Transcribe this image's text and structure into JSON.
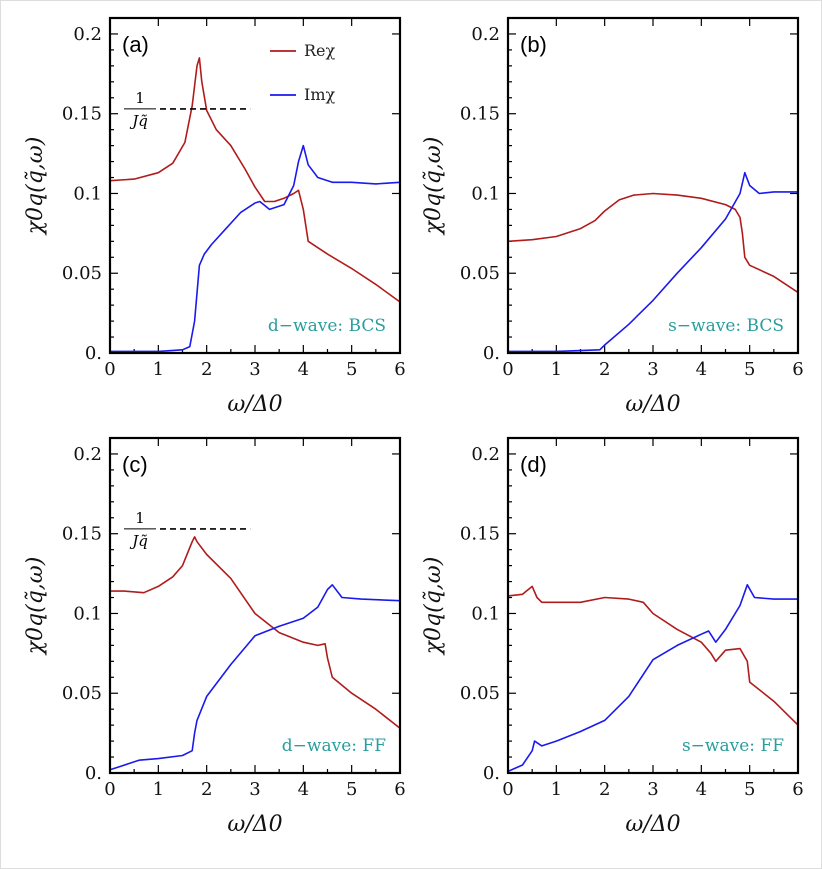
{
  "colors": {
    "re": "#b01c1c",
    "im": "#1a1aee",
    "annotation": "#2a9d9d"
  },
  "chart_data": [
    {
      "type": "line",
      "panel_label": "(a)",
      "ylabel": "χ0q(q̃,ω)",
      "xlabel": "ω/Δ0",
      "xlim": [
        0,
        6
      ],
      "ylim": [
        0,
        0.21
      ],
      "xticks": [
        "0",
        "1",
        "2",
        "3",
        "4",
        "5",
        "6"
      ],
      "yticks": [
        "0.",
        "0.05",
        "0.1",
        "0.15",
        "0.2"
      ],
      "legend": [
        "Reχ",
        "Imχ"
      ],
      "annotation": "d−wave: BCS",
      "threshold": {
        "label_num": "1",
        "label_den": "Jq̃",
        "value": 0.153,
        "x_range": [
          0,
          2.9
        ]
      },
      "series": [
        {
          "name": "Reχ",
          "x": [
            0,
            0.5,
            1,
            1.3,
            1.55,
            1.7,
            1.8,
            1.85,
            1.9,
            2,
            2.2,
            2.5,
            2.8,
            3,
            3.2,
            3.4,
            3.6,
            3.8,
            3.9,
            4,
            4.1,
            4.5,
            5,
            5.5,
            6
          ],
          "y": [
            0.108,
            0.109,
            0.113,
            0.119,
            0.132,
            0.155,
            0.18,
            0.185,
            0.17,
            0.152,
            0.14,
            0.13,
            0.115,
            0.104,
            0.095,
            0.095,
            0.097,
            0.1,
            0.102,
            0.09,
            0.07,
            0.062,
            0.053,
            0.043,
            0.032
          ]
        },
        {
          "name": "Imχ",
          "x": [
            0,
            1,
            1.5,
            1.65,
            1.75,
            1.85,
            1.95,
            2.1,
            2.4,
            2.7,
            3,
            3.1,
            3.3,
            3.6,
            3.8,
            3.9,
            4,
            4.1,
            4.3,
            4.6,
            5,
            5.5,
            6
          ],
          "y": [
            0.001,
            0.001,
            0.002,
            0.004,
            0.02,
            0.055,
            0.062,
            0.068,
            0.078,
            0.088,
            0.094,
            0.095,
            0.09,
            0.093,
            0.105,
            0.12,
            0.13,
            0.118,
            0.11,
            0.107,
            0.107,
            0.106,
            0.107
          ]
        }
      ]
    },
    {
      "type": "line",
      "panel_label": "(b)",
      "ylabel": "χ0q(q̃,ω)",
      "xlabel": "ω/Δ0",
      "xlim": [
        0,
        6
      ],
      "ylim": [
        0,
        0.21
      ],
      "xticks": [
        "0",
        "1",
        "2",
        "3",
        "4",
        "5",
        "6"
      ],
      "yticks": [
        "0.",
        "0.05",
        "0.1",
        "0.15",
        "0.2"
      ],
      "annotation": "s−wave: BCS",
      "series": [
        {
          "name": "Reχ",
          "x": [
            0,
            0.5,
            1,
            1.5,
            1.8,
            2,
            2.3,
            2.6,
            3,
            3.5,
            4,
            4.5,
            4.7,
            4.8,
            4.85,
            4.9,
            5,
            5.5,
            6
          ],
          "y": [
            0.07,
            0.071,
            0.073,
            0.078,
            0.083,
            0.089,
            0.096,
            0.099,
            0.1,
            0.099,
            0.097,
            0.093,
            0.09,
            0.085,
            0.075,
            0.06,
            0.055,
            0.048,
            0.038
          ]
        },
        {
          "name": "Imχ",
          "x": [
            0,
            1,
            1.9,
            2,
            2.5,
            3,
            3.5,
            4,
            4.5,
            4.8,
            4.9,
            5,
            5.2,
            5.5,
            6
          ],
          "y": [
            0.001,
            0.001,
            0.002,
            0.005,
            0.018,
            0.033,
            0.05,
            0.066,
            0.084,
            0.1,
            0.113,
            0.105,
            0.1,
            0.101,
            0.101
          ]
        }
      ]
    },
    {
      "type": "line",
      "panel_label": "(c)",
      "ylabel": "χ0q(q̃,ω)",
      "xlabel": "ω/Δ0",
      "xlim": [
        0,
        6
      ],
      "ylim": [
        0,
        0.21
      ],
      "xticks": [
        "0",
        "1",
        "2",
        "3",
        "4",
        "5",
        "6"
      ],
      "yticks": [
        "0.",
        "0.05",
        "0.1",
        "0.15",
        "0.2"
      ],
      "annotation": "d−wave: FF",
      "threshold": {
        "label_num": "1",
        "label_den": "Jq̃",
        "value": 0.153,
        "x_range": [
          0,
          2.9
        ]
      },
      "series": [
        {
          "name": "Reχ",
          "x": [
            0,
            0.3,
            0.7,
            1,
            1.3,
            1.5,
            1.7,
            1.75,
            1.8,
            2,
            2.5,
            3,
            3.5,
            4,
            4.3,
            4.45,
            4.5,
            4.6,
            5,
            5.5,
            6
          ],
          "y": [
            0.114,
            0.114,
            0.113,
            0.117,
            0.123,
            0.13,
            0.145,
            0.148,
            0.145,
            0.137,
            0.122,
            0.1,
            0.088,
            0.082,
            0.08,
            0.081,
            0.072,
            0.06,
            0.05,
            0.04,
            0.028
          ]
        },
        {
          "name": "Imχ",
          "x": [
            0,
            0.2,
            0.6,
            1,
            1.5,
            1.7,
            1.75,
            1.8,
            2,
            2.5,
            3,
            3.5,
            4,
            4.3,
            4.5,
            4.6,
            4.8,
            5.2,
            6
          ],
          "y": [
            0.002,
            0.004,
            0.008,
            0.009,
            0.011,
            0.014,
            0.025,
            0.033,
            0.048,
            0.068,
            0.086,
            0.092,
            0.097,
            0.104,
            0.115,
            0.118,
            0.11,
            0.109,
            0.108
          ]
        }
      ]
    },
    {
      "type": "line",
      "panel_label": "(d)",
      "ylabel": "χ0q(q̃,ω)",
      "xlabel": "ω/Δ0",
      "xlim": [
        0,
        6
      ],
      "ylim": [
        0,
        0.21
      ],
      "xticks": [
        "0",
        "1",
        "2",
        "3",
        "4",
        "5",
        "6"
      ],
      "yticks": [
        "0.",
        "0.05",
        "0.1",
        "0.15",
        "0.2"
      ],
      "annotation": "s−wave: FF",
      "series": [
        {
          "name": "Reχ",
          "x": [
            0,
            0.3,
            0.5,
            0.6,
            0.7,
            1,
            1.5,
            2,
            2.5,
            2.8,
            3,
            3.5,
            4,
            4.2,
            4.3,
            4.5,
            4.8,
            4.95,
            5,
            5.5,
            6
          ],
          "y": [
            0.111,
            0.112,
            0.117,
            0.11,
            0.107,
            0.107,
            0.107,
            0.11,
            0.109,
            0.107,
            0.1,
            0.09,
            0.082,
            0.075,
            0.07,
            0.077,
            0.078,
            0.07,
            0.057,
            0.045,
            0.03
          ]
        },
        {
          "name": "Imχ",
          "x": [
            0,
            0.3,
            0.5,
            0.55,
            0.7,
            1,
            1.5,
            2,
            2.5,
            3,
            3.5,
            4,
            4.15,
            4.3,
            4.5,
            4.8,
            4.95,
            5.1,
            5.5,
            6
          ],
          "y": [
            0.001,
            0.005,
            0.014,
            0.02,
            0.017,
            0.02,
            0.026,
            0.033,
            0.048,
            0.071,
            0.08,
            0.087,
            0.089,
            0.082,
            0.09,
            0.105,
            0.118,
            0.11,
            0.109,
            0.109
          ]
        }
      ]
    }
  ]
}
